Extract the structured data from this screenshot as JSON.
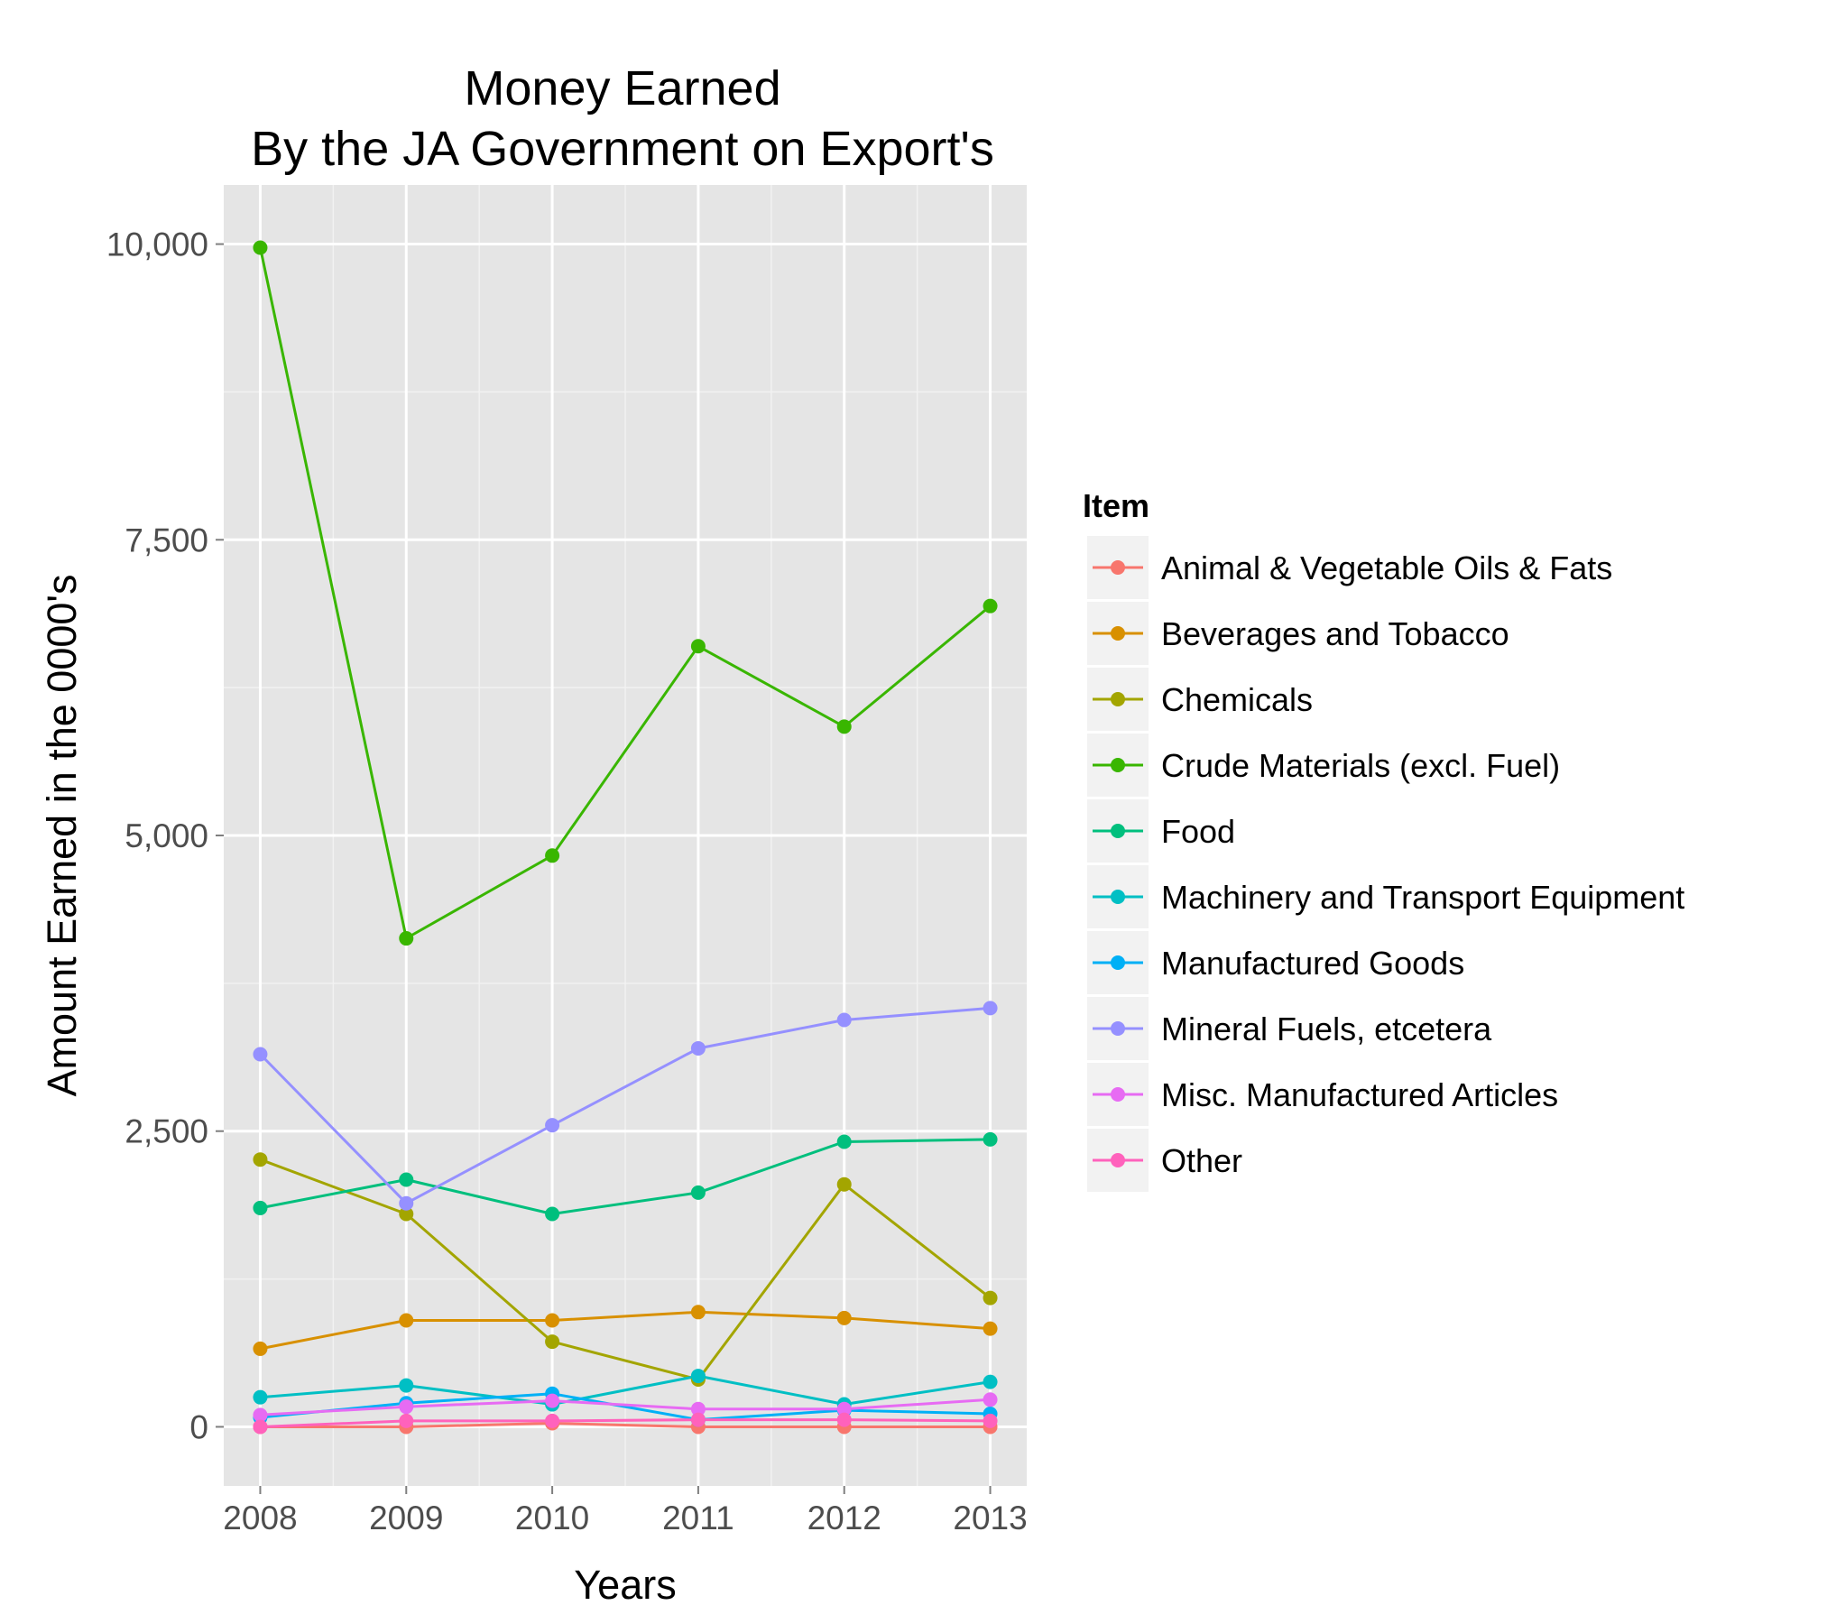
{
  "chart_data": {
    "type": "line",
    "title_lines": [
      "Money Earned",
      "By the JA Government on Export's"
    ],
    "xlabel": "Years",
    "ylabel": "Amount Earned in the 0000's",
    "x": [
      2008,
      2009,
      2010,
      2011,
      2012,
      2013
    ],
    "x_ticks": [
      "2008",
      "2009",
      "2010",
      "2011",
      "2012",
      "2013"
    ],
    "y_ticks": [
      {
        "value": 0,
        "label": "0"
      },
      {
        "value": 2500,
        "label": "2,500"
      },
      {
        "value": 5000,
        "label": "5,000"
      },
      {
        "value": 7500,
        "label": "7,500"
      },
      {
        "value": 10000,
        "label": "10,000"
      }
    ],
    "xlim": [
      2007.75,
      2013.25
    ],
    "ylim": [
      -500,
      10500
    ],
    "grid": true,
    "legend_title": "Item",
    "legend_position": "right",
    "series": [
      {
        "name": "Animal & Vegetable Oils & Fats",
        "color": "#F8766D",
        "values": [
          0,
          0,
          30,
          0,
          0,
          0
        ]
      },
      {
        "name": "Beverages and Tobacco",
        "color": "#D89000",
        "values": [
          660,
          900,
          900,
          970,
          920,
          830
        ]
      },
      {
        "name": "Chemicals",
        "color": "#A3A500",
        "values": [
          2260,
          1800,
          720,
          400,
          2050,
          1090
        ]
      },
      {
        "name": "Crude Materials (excl. Fuel)",
        "color": "#39B600",
        "values": [
          9970,
          4130,
          4830,
          6600,
          5920,
          6940
        ]
      },
      {
        "name": "Food",
        "color": "#00BF7D",
        "values": [
          1850,
          2090,
          1800,
          1980,
          2410,
          2430
        ]
      },
      {
        "name": "Machinery and Transport Equipment",
        "color": "#00BFC4",
        "values": [
          250,
          350,
          190,
          430,
          190,
          380
        ]
      },
      {
        "name": "Manufactured Goods",
        "color": "#00B0F6",
        "values": [
          80,
          200,
          280,
          60,
          140,
          110
        ]
      },
      {
        "name": "Mineral Fuels, etcetera",
        "color": "#9590FF",
        "values": [
          3150,
          1890,
          2550,
          3200,
          3440,
          3540
        ]
      },
      {
        "name": "Misc. Manufactured Articles",
        "color": "#E76BF3",
        "values": [
          100,
          170,
          220,
          150,
          150,
          230
        ]
      },
      {
        "name": "Other",
        "color": "#FF62BC",
        "values": [
          0,
          50,
          50,
          60,
          60,
          50
        ]
      }
    ]
  }
}
